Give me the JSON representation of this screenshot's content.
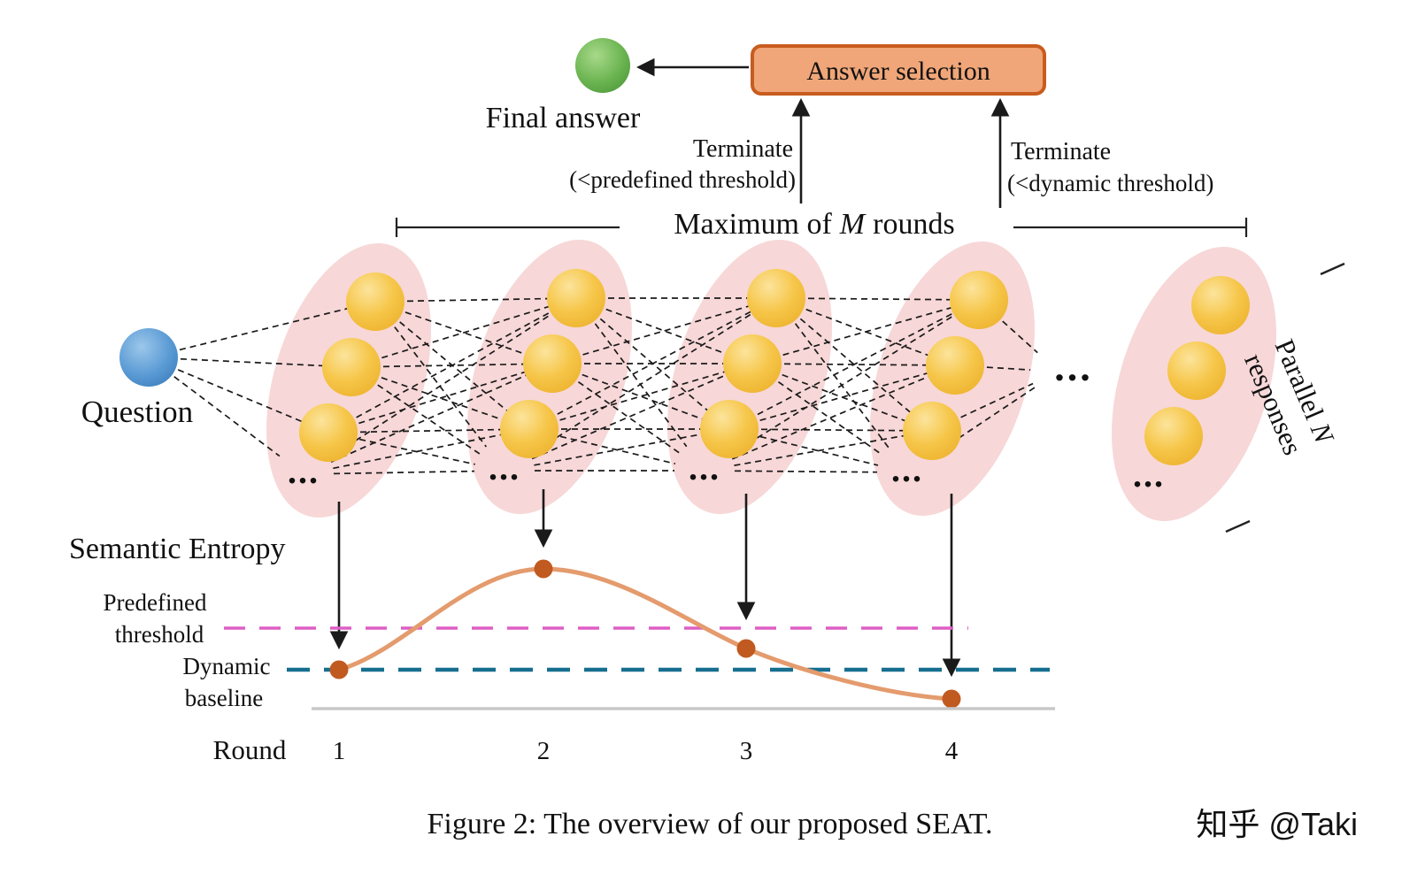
{
  "figure": {
    "caption": "Figure 2: The overview of our proposed SEAT.",
    "watermark": "知乎 @Taki"
  },
  "top": {
    "final_answer_label": "Final answer",
    "answer_selection_label": "Answer selection",
    "terminate_predefined": {
      "line1": "Terminate",
      "line2": "(<predefined threshold)"
    },
    "terminate_dynamic": {
      "line1": "Terminate",
      "line2": "(<dynamic threshold)"
    },
    "max_rounds": {
      "prefix": "Maximum of",
      "m": "M",
      "suffix": "rounds"
    }
  },
  "network": {
    "question_label": "Question",
    "ellipsis": "...",
    "mid_ellipsis": "...",
    "parallel": {
      "word1": "Parallel",
      "n": "N",
      "line2": "responses"
    }
  },
  "chart": {
    "entropy_label": "Semantic Entropy",
    "predefined_threshold": {
      "line1": "Predefined",
      "line2": "threshold"
    },
    "dynamic_baseline": {
      "line1": "Dynamic",
      "line2": "baseline"
    },
    "round_label": "Round",
    "rounds": [
      "1",
      "2",
      "3",
      "4"
    ]
  },
  "chart_data": {
    "type": "line",
    "title": "Semantic Entropy",
    "xlabel": "Round",
    "x": [
      1,
      2,
      3,
      4
    ],
    "series": [
      {
        "name": "Semantic Entropy",
        "values": [
          0.28,
          1.0,
          0.45,
          0.08
        ]
      }
    ],
    "reference_lines": [
      {
        "name": "Predefined threshold",
        "value": 0.6,
        "color": "#dd5fc5",
        "style": "dashed"
      },
      {
        "name": "Dynamic baseline",
        "value": 0.28,
        "color": "#166f8f",
        "style": "dashed"
      }
    ],
    "ylim": [
      0,
      1.1
    ],
    "grid": false,
    "legend": "none"
  },
  "colors": {
    "answer_box_fill": "#f0a678",
    "answer_box_border": "#c85c1e",
    "question_node": "#5b9bd5",
    "final_answer_node": "#6cb552",
    "response_node": "#f6c649",
    "group_ellipse": "#f6d3d3",
    "entropy_curve": "#e49b6d",
    "entropy_point": "#c15a20",
    "predefined_threshold": "#dd5fc5",
    "dynamic_baseline": "#166f8f"
  }
}
